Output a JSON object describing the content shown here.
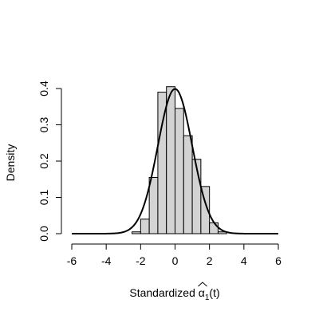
{
  "chart_data": {
    "type": "bar",
    "subtype": "histogram-with-density-curve",
    "title": "",
    "ylabel": "Density",
    "xlabel": {
      "prefix": "Standardized ",
      "symbol": "α",
      "subscript": "1",
      "suffix": "(t)"
    },
    "xlim": [
      -6,
      6
    ],
    "ylim": [
      0,
      0.4
    ],
    "x_ticks": [
      -6,
      -4,
      -2,
      0,
      2,
      4,
      6
    ],
    "x_tick_labels": [
      "-6",
      "-4",
      "-2",
      "0",
      "2",
      "4",
      "6"
    ],
    "y_ticks": [
      0,
      0.1,
      0.2,
      0.3,
      0.4
    ],
    "y_tick_labels": [
      "0.0",
      "0.1",
      "0.2",
      "0.3",
      "0.4"
    ],
    "bar_fill": "#d3d3d3",
    "line_color": "#000000",
    "grid": false,
    "bins": [
      {
        "x0": -2.5,
        "x1": -2.0,
        "density": 0.005
      },
      {
        "x0": -2.0,
        "x1": -1.5,
        "density": 0.04
      },
      {
        "x0": -1.5,
        "x1": -1.0,
        "density": 0.155
      },
      {
        "x0": -1.0,
        "x1": -0.5,
        "density": 0.39
      },
      {
        "x0": -0.5,
        "x1": 0.0,
        "density": 0.405
      },
      {
        "x0": 0.0,
        "x1": 0.5,
        "density": 0.345
      },
      {
        "x0": 0.5,
        "x1": 1.0,
        "density": 0.27
      },
      {
        "x0": 1.0,
        "x1": 1.5,
        "density": 0.205
      },
      {
        "x0": 1.5,
        "x1": 2.0,
        "density": 0.13
      },
      {
        "x0": 2.0,
        "x1": 2.5,
        "density": 0.03
      },
      {
        "x0": 2.5,
        "x1": 3.0,
        "density": 0.005
      }
    ],
    "curve": {
      "type": "normal-density",
      "mean": 0,
      "sd": 1,
      "x_range": [
        -6,
        6
      ]
    }
  }
}
